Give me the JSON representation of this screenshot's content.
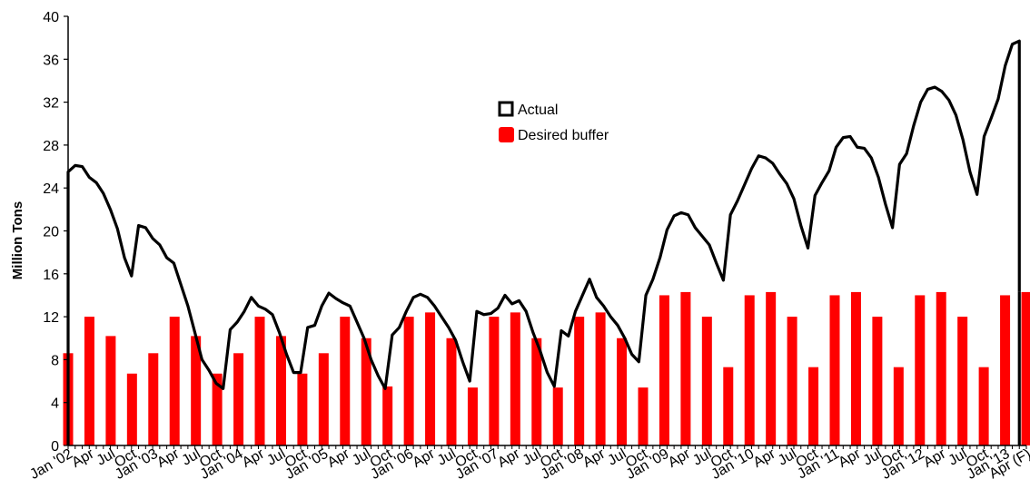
{
  "chart_data": {
    "type": "bar",
    "ylabel": "Million Tons",
    "ylim": [
      0,
      40
    ],
    "yticks": [
      0,
      4,
      8,
      12,
      16,
      20,
      24,
      28,
      32,
      36,
      40
    ],
    "grid": false,
    "legend_position": "upper-center",
    "x_tick_labels": [
      "Jan '02",
      "Apr",
      "Jul",
      "Oct",
      "Jan '03",
      "Apr",
      "Jul",
      "Oct",
      "Jan '04",
      "Apr",
      "Jul",
      "Oct",
      "Jan '05",
      "Apr",
      "Jul",
      "Oct",
      "Jan '06",
      "Apr",
      "Jul",
      "Oct",
      "Jan '07",
      "Apr",
      "Jul",
      "Oct",
      "Jan '08",
      "Apr",
      "Jul",
      "Oct",
      "Jan '09",
      "Apr",
      "Jul",
      "Oct",
      "Jan '10",
      "Apr",
      "Jul",
      "Oct",
      "Jan '11",
      "Apr",
      "Jul",
      "Oct",
      "Jan '12",
      "Apr",
      "Jul",
      "Oct",
      "Jan '13",
      "Apr (F)"
    ],
    "series": [
      {
        "name": "Actual",
        "type": "line",
        "color": "#000000",
        "values": [
          25.5,
          26.1,
          26.0,
          25.0,
          24.5,
          23.5,
          22.0,
          20.2,
          17.5,
          15.8,
          20.5,
          20.3,
          19.3,
          18.7,
          17.5,
          17.0,
          15.0,
          13.0,
          10.5,
          8.0,
          7.0,
          5.8,
          5.3,
          10.8,
          11.5,
          12.5,
          13.8,
          13.0,
          12.7,
          12.2,
          10.5,
          8.5,
          6.8,
          6.8,
          11.0,
          11.2,
          13.0,
          14.2,
          13.7,
          13.3,
          13.0,
          11.5,
          10.0,
          8.0,
          6.5,
          5.3,
          10.3,
          11.0,
          12.5,
          13.8,
          14.1,
          13.8,
          13.0,
          12.0,
          11.0,
          9.8,
          7.8,
          6.0,
          12.5,
          12.2,
          12.3,
          12.8,
          14.0,
          13.2,
          13.5,
          12.5,
          10.5,
          8.8,
          6.8,
          5.5,
          10.7,
          10.2,
          12.5,
          14.0,
          15.5,
          13.8,
          13.0,
          12.0,
          11.2,
          10.0,
          8.5,
          7.8,
          14.0,
          15.5,
          17.5,
          20.1,
          21.4,
          21.7,
          21.5,
          20.3,
          19.5,
          18.7,
          17.0,
          15.4,
          21.5,
          22.8,
          24.3,
          25.8,
          27.0,
          26.8,
          26.3,
          25.3,
          24.4,
          23.0,
          20.5,
          18.4,
          23.3,
          24.5,
          25.6,
          27.8,
          28.7,
          28.8,
          27.8,
          27.7,
          26.8,
          25.0,
          22.5,
          20.3,
          26.2,
          27.2,
          29.8,
          32.0,
          33.2,
          33.4,
          33.0,
          32.2,
          30.8,
          28.5,
          25.5,
          23.4,
          28.8,
          30.5,
          32.3,
          35.4,
          37.4,
          37.7,
          14.3
        ]
      },
      {
        "name": "Desired buffer",
        "type": "bar",
        "color": "#ff0000",
        "values": [
          8.6,
          12.0,
          10.2,
          6.7,
          8.6,
          12.0,
          10.2,
          6.7,
          8.6,
          12.0,
          10.2,
          6.7,
          8.6,
          12.0,
          10.0,
          5.5,
          12.0,
          12.4,
          10.0,
          5.4,
          12.0,
          12.4,
          10.0,
          5.4,
          12.0,
          12.4,
          10.0,
          5.4,
          14.0,
          14.3,
          12.0,
          7.3,
          14.0,
          14.3,
          12.0,
          7.3,
          14.0,
          14.3,
          12.0,
          7.3,
          14.0,
          14.3,
          12.0,
          7.3,
          14.0,
          14.3
        ]
      }
    ]
  }
}
